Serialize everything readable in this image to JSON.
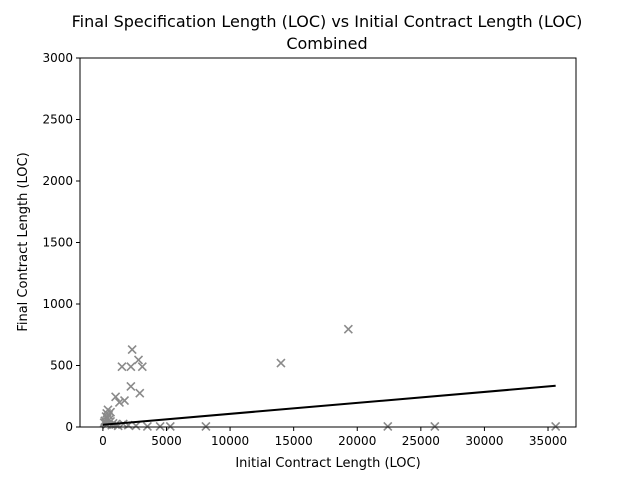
{
  "chart_data": {
    "type": "scatter",
    "title_line1": "Final Specification Length (LOC) vs Initial Contract Length (LOC)",
    "title_line2": "Combined",
    "xlabel": "Initial Contract Length (LOC)",
    "ylabel": "Final Contract Length (LOC)",
    "xlim": [
      -1800,
      37200
    ],
    "ylim": [
      0,
      3000
    ],
    "xticks": [
      0,
      5000,
      10000,
      15000,
      20000,
      25000,
      30000,
      35000
    ],
    "yticks": [
      0,
      500,
      1000,
      1500,
      2000,
      2500,
      3000
    ],
    "grid": false,
    "legend": "none",
    "marker": "x",
    "marker_color": "#8a8a8a",
    "fit_color": "#000000",
    "points": [
      [
        19300,
        795
      ],
      [
        14000,
        520
      ],
      [
        2300,
        630
      ],
      [
        2800,
        545
      ],
      [
        2200,
        490
      ],
      [
        1500,
        490
      ],
      [
        3100,
        490
      ],
      [
        1000,
        245
      ],
      [
        1300,
        200
      ],
      [
        1700,
        215
      ],
      [
        2200,
        330
      ],
      [
        2900,
        275
      ],
      [
        400,
        140
      ],
      [
        300,
        110
      ],
      [
        600,
        120
      ],
      [
        450,
        95
      ],
      [
        250,
        85
      ],
      [
        350,
        70
      ],
      [
        500,
        60
      ],
      [
        150,
        50
      ],
      [
        600,
        45
      ],
      [
        100,
        35
      ],
      [
        200,
        30
      ],
      [
        800,
        30
      ],
      [
        300,
        20
      ],
      [
        700,
        15
      ],
      [
        1000,
        20
      ],
      [
        1200,
        10
      ],
      [
        1600,
        25
      ],
      [
        2000,
        15
      ],
      [
        2600,
        10
      ],
      [
        3500,
        5
      ],
      [
        4500,
        5
      ],
      [
        5300,
        5
      ],
      [
        8100,
        5
      ],
      [
        22400,
        5
      ],
      [
        26100,
        5
      ],
      [
        35600,
        5
      ]
    ],
    "fit_line": {
      "x": [
        0,
        35600
      ],
      "y": [
        18,
        335
      ]
    }
  }
}
